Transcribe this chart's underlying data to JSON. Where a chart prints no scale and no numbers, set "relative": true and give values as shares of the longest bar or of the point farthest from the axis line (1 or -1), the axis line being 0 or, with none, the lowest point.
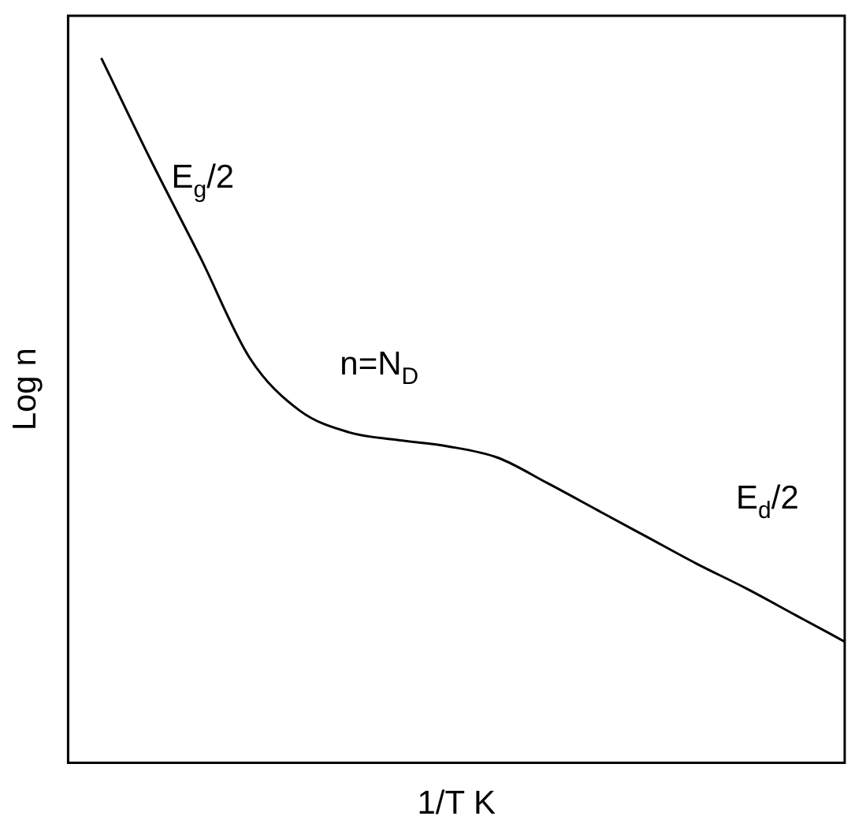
{
  "chart_data": {
    "type": "line",
    "relative": true,
    "xlabel": "1/T K",
    "ylabel": "Log n",
    "color": "#000000",
    "categories": [
      null,
      null,
      null,
      null,
      null,
      null,
      null,
      null,
      null,
      null,
      null,
      null,
      null,
      null,
      null,
      null
    ],
    "values": [
      1,
      0.855,
      0.717,
      0.574,
      0.5,
      0.469,
      0.458,
      0.449,
      0.433,
      0.397,
      0.359,
      0.321,
      0.283,
      0.248,
      0.21,
      0.172
    ],
    "annotations": [
      "E$_{g}$/2",
      "n=N$_{D}$",
      "E$_{d}$/2"
    ],
    "grid": false,
    "legend": false,
    "marker": "none",
    "line_style": "solid"
  }
}
